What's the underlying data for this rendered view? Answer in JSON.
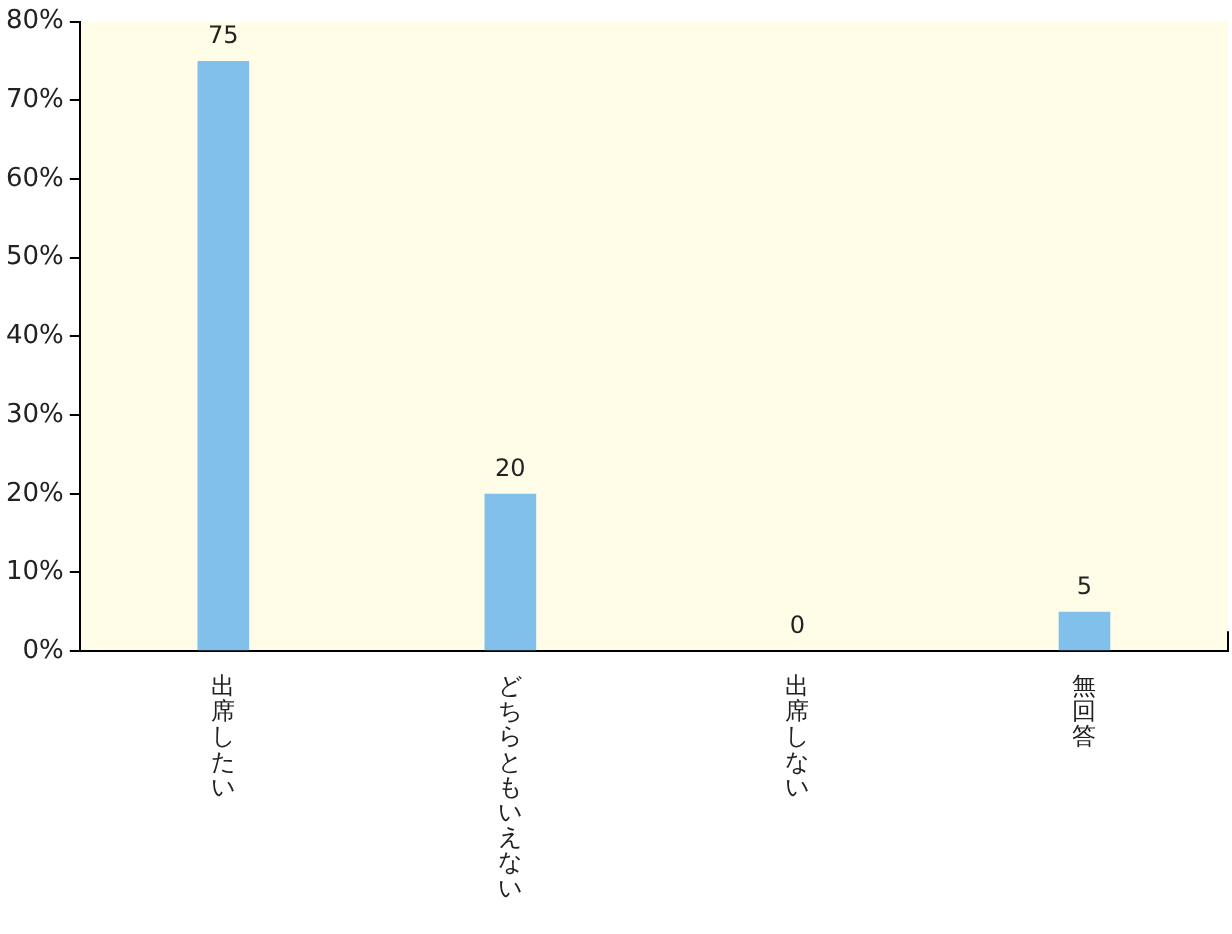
{
  "chart_data": {
    "type": "bar",
    "categories": [
      "出席したい",
      "どちらともいえない",
      "出席しない",
      "無回答"
    ],
    "values": [
      75,
      20,
      0,
      5
    ],
    "color": "#80c0eb",
    "ylim": [
      0,
      80
    ],
    "yticks": [
      {
        "value": 0,
        "label": "0%"
      },
      {
        "value": 10,
        "label": "10%"
      },
      {
        "value": 20,
        "label": "20%"
      },
      {
        "value": 30,
        "label": "30%"
      },
      {
        "value": 40,
        "label": "40%"
      },
      {
        "value": 50,
        "label": "50%"
      },
      {
        "value": 60,
        "label": "60%"
      },
      {
        "value": 70,
        "label": "70%"
      },
      {
        "value": 80,
        "label": "80%"
      }
    ],
    "data_labels": true,
    "grid": false,
    "legend": false
  }
}
